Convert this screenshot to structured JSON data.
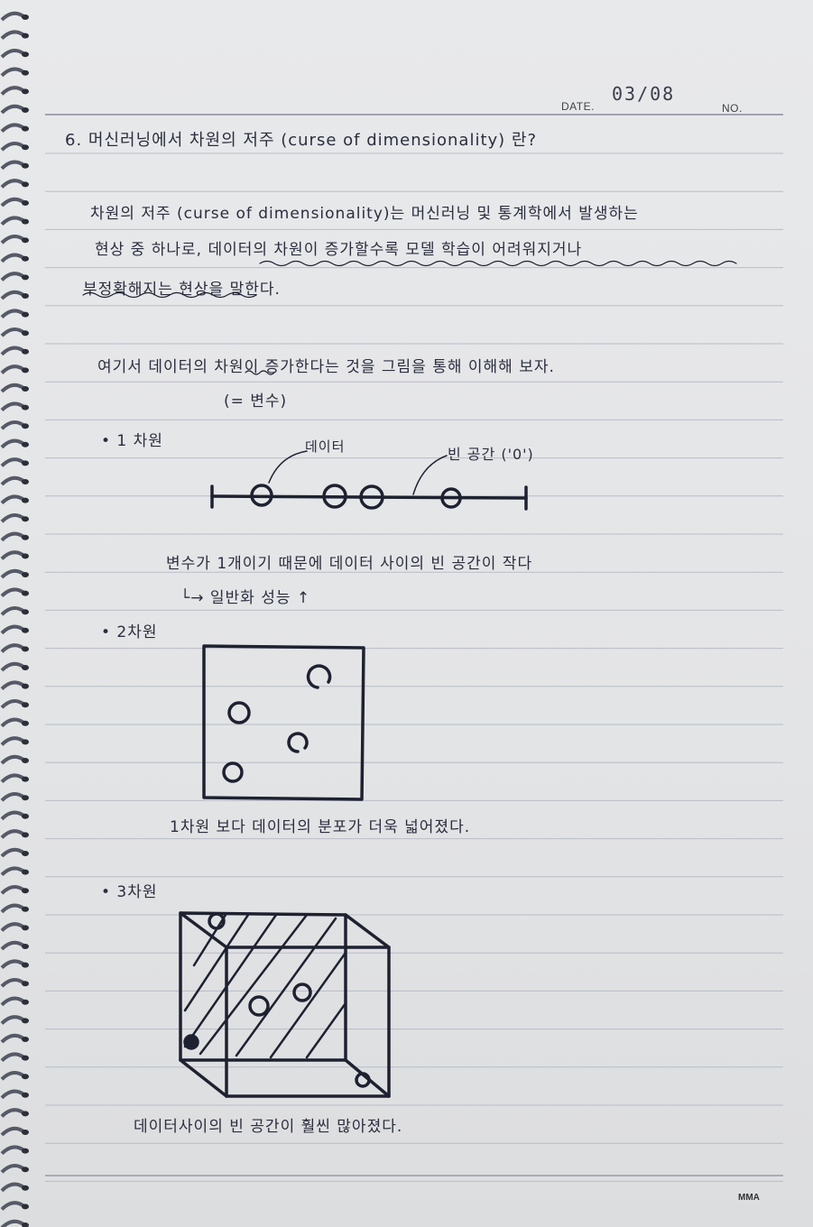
{
  "header": {
    "date_label": "DATE.",
    "date_value": "03/08",
    "no_label": "NO."
  },
  "note": {
    "title": "6. 머신러닝에서 차원의 저주 (curse of dimensionality) 란?",
    "para_line1": "차원의 저주 (curse of dimensionality)는 머신러닝 및 통계학에서 발생하는",
    "para_line2": "현상 중 하나로, 데이터의 차원이 증가할수록 모델 학습이 어려워지거나",
    "para_line3": "부정확해지는 현상을 말한다.",
    "intro_line": "여기서 데이터의 차원이 증가한다는 것을 그림을 통해 이해해 보자.",
    "intro_note": "(= 변수)",
    "dim1": {
      "heading": "• 1 차원",
      "label_data": "데이터",
      "label_empty": "빈 공간 ('0')",
      "caption1": "변수가 1개이기 때문에 데이터 사이의 빈 공간이 작다",
      "caption2": "└→ 일반화 성능 ↑"
    },
    "dim2": {
      "heading": "• 2차원",
      "caption": "1차원 보다 데이터의 분포가 더욱 넓어졌다."
    },
    "dim3": {
      "heading": "• 3차원",
      "caption": "데이터사이의 빈 공간이 훨씬 많아졌다."
    },
    "brand": "MMA"
  },
  "colors": {
    "paper": "#e4e5e7",
    "ink": "#1e2130",
    "rule": "#b9bcc6"
  }
}
